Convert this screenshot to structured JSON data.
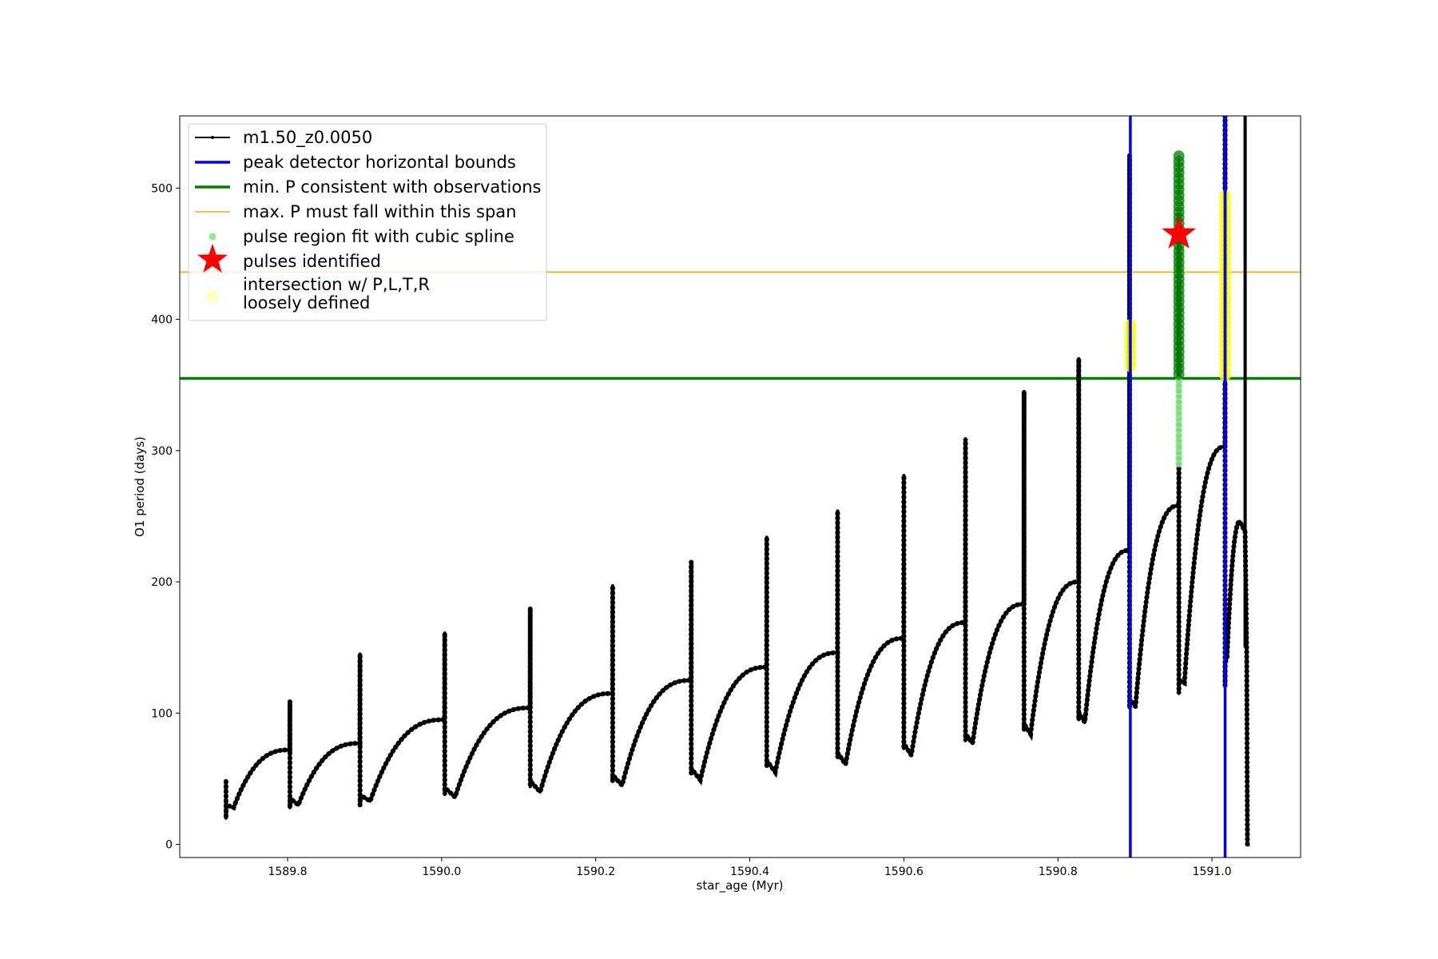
{
  "chart_data": {
    "type": "line",
    "xlabel": "star_age (Myr)",
    "ylabel": "O1 period (days)",
    "xlim": [
      1589.66,
      1591.115
    ],
    "ylim": [
      -10,
      555
    ],
    "xticks": [
      {
        "value": 1589.8,
        "label": "1589.8"
      },
      {
        "value": 1590.0,
        "label": "1590.0"
      },
      {
        "value": 1590.2,
        "label": "1590.2"
      },
      {
        "value": 1590.4,
        "label": "1590.4"
      },
      {
        "value": 1590.6,
        "label": "1590.6"
      },
      {
        "value": 1590.8,
        "label": "1590.8"
      },
      {
        "value": 1591.0,
        "label": "1591.0"
      }
    ],
    "yticks": [
      {
        "value": 0,
        "label": "0"
      },
      {
        "value": 100,
        "label": "100"
      },
      {
        "value": 200,
        "label": "200"
      },
      {
        "value": 300,
        "label": "300"
      },
      {
        "value": 400,
        "label": "400"
      },
      {
        "value": 500,
        "label": "500"
      }
    ],
    "grid": false,
    "legend_position": "top-left",
    "colors": {
      "model": "#000000",
      "bounds": "#0000ff",
      "min_p": "#008000",
      "max_p": "#ffa500",
      "spline": "#90ee90",
      "pulse": "#ff0000",
      "intersection": "#ffff00"
    },
    "series": [
      {
        "name": "m1.50_z0.0050",
        "kind": "line",
        "cycles": [
          {
            "start": 1589.72,
            "end": 1589.803,
            "start_p": 20,
            "low_p": 28,
            "high_p": 72,
            "spike_p": 102
          },
          {
            "start": 1589.803,
            "end": 1589.894,
            "start_p": 28,
            "low_p": 30,
            "high_p": 77,
            "spike_p": 109
          },
          {
            "start": 1589.894,
            "end": 1590.004,
            "start_p": 30,
            "low_p": 33,
            "high_p": 95,
            "spike_p": 145
          },
          {
            "start": 1590.004,
            "end": 1590.115,
            "start_p": 38,
            "low_p": 36,
            "high_p": 104,
            "spike_p": 161
          },
          {
            "start": 1590.115,
            "end": 1590.222,
            "start_p": 44,
            "low_p": 40,
            "high_p": 115,
            "spike_p": 180
          },
          {
            "start": 1590.222,
            "end": 1590.324,
            "start_p": 48,
            "low_p": 45,
            "high_p": 125,
            "spike_p": 197
          },
          {
            "start": 1590.324,
            "end": 1590.422,
            "start_p": 54,
            "low_p": 49,
            "high_p": 135,
            "spike_p": 215
          },
          {
            "start": 1590.422,
            "end": 1590.514,
            "start_p": 60,
            "low_p": 55,
            "high_p": 146,
            "spike_p": 234
          },
          {
            "start": 1590.514,
            "end": 1590.6,
            "start_p": 66,
            "low_p": 61,
            "high_p": 157,
            "spike_p": 254
          },
          {
            "start": 1590.6,
            "end": 1590.68,
            "start_p": 73,
            "low_p": 68,
            "high_p": 169,
            "spike_p": 281
          },
          {
            "start": 1590.68,
            "end": 1590.756,
            "start_p": 79,
            "low_p": 77,
            "high_p": 183,
            "spike_p": 309
          },
          {
            "start": 1590.756,
            "end": 1590.827,
            "start_p": 87,
            "low_p": 84,
            "high_p": 200,
            "spike_p": 345
          },
          {
            "start": 1590.827,
            "end": 1590.893,
            "start_p": 95,
            "low_p": 93,
            "high_p": 224,
            "spike_p": 370
          },
          {
            "start": 1590.893,
            "end": 1590.957,
            "start_p": 104,
            "low_p": 105,
            "high_p": 258,
            "spike_p": 525
          },
          {
            "start": 1590.957,
            "end": 1591.017,
            "start_p": 115,
            "low_p": 123,
            "high_p": 303,
            "spike_p": 480
          },
          {
            "start": 1591.017,
            "end": 1591.043,
            "start_p": 121,
            "low_p": 143,
            "high_p": 246,
            "spike_p": 555
          }
        ],
        "final_drop": {
          "x": 1591.046,
          "y": 0
        }
      },
      {
        "name": "peak detector horizontal bounds",
        "kind": "vline",
        "x": [
          1590.894,
          1591.017
        ]
      },
      {
        "name": "min. P consistent with observations",
        "kind": "hline",
        "y": 355
      },
      {
        "name": "max. P must fall within this span",
        "kind": "hline",
        "y": 436
      },
      {
        "name": "pulse region fit with cubic spline",
        "kind": "scatter",
        "x": 1590.957,
        "y_range": [
          290,
          525
        ]
      },
      {
        "name": "pulses identified",
        "kind": "marker",
        "x": 1590.957,
        "y": 465
      },
      {
        "name": "intersection w/ P,L,T,R\nloosely defined",
        "kind": "scatter",
        "segments": [
          {
            "x": 1590.894,
            "y_range": [
              364,
              396
            ]
          },
          {
            "x": 1591.017,
            "y_range": [
              357,
              494
            ]
          }
        ]
      }
    ]
  }
}
